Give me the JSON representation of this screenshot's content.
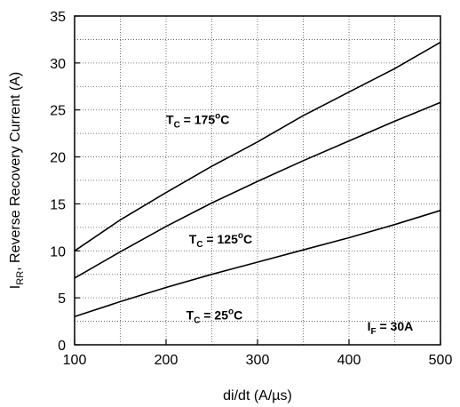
{
  "chart_data": {
    "type": "line",
    "xlabel": "di/dt (A/µs)",
    "ylabel": {
      "prefix": "I",
      "sub": "RR",
      "rest": ", Reverse Recovery Current (A)"
    },
    "xlim": [
      100,
      500
    ],
    "ylim": [
      0,
      35
    ],
    "x_ticks": [
      100,
      200,
      300,
      400,
      500
    ],
    "y_ticks": [
      0,
      5,
      10,
      15,
      20,
      25,
      30,
      35
    ],
    "grid": true,
    "series": [
      {
        "name": "TC = 175°C",
        "label": {
          "main": "T",
          "sub": "C",
          "mid": " = 175",
          "sup": "o",
          "end": "C"
        },
        "x": [
          100,
          150,
          200,
          250,
          300,
          350,
          400,
          450,
          500
        ],
        "y": [
          10.0,
          13.3,
          16.2,
          19.0,
          21.6,
          24.4,
          26.9,
          29.4,
          32.2
        ]
      },
      {
        "name": "TC = 125°C",
        "label": {
          "main": "T",
          "sub": "C",
          "mid": " = 125",
          "sup": "o",
          "end": "C"
        },
        "x": [
          100,
          150,
          200,
          250,
          300,
          350,
          400,
          450,
          500
        ],
        "y": [
          7.1,
          9.9,
          12.6,
          15.1,
          17.4,
          19.6,
          21.7,
          23.8,
          25.8
        ]
      },
      {
        "name": "TC = 25°C",
        "label": {
          "main": "T",
          "sub": "C",
          "mid": " = 25",
          "sup": "o",
          "end": "C"
        },
        "x": [
          100,
          150,
          200,
          250,
          300,
          350,
          400,
          450,
          500
        ],
        "y": [
          3.0,
          4.6,
          6.1,
          7.5,
          8.8,
          10.1,
          11.4,
          12.8,
          14.3
        ]
      }
    ],
    "annotations": [
      {
        "text": "IF = 30A",
        "main": "I",
        "sub": "F",
        "end": " = 30A"
      }
    ]
  }
}
